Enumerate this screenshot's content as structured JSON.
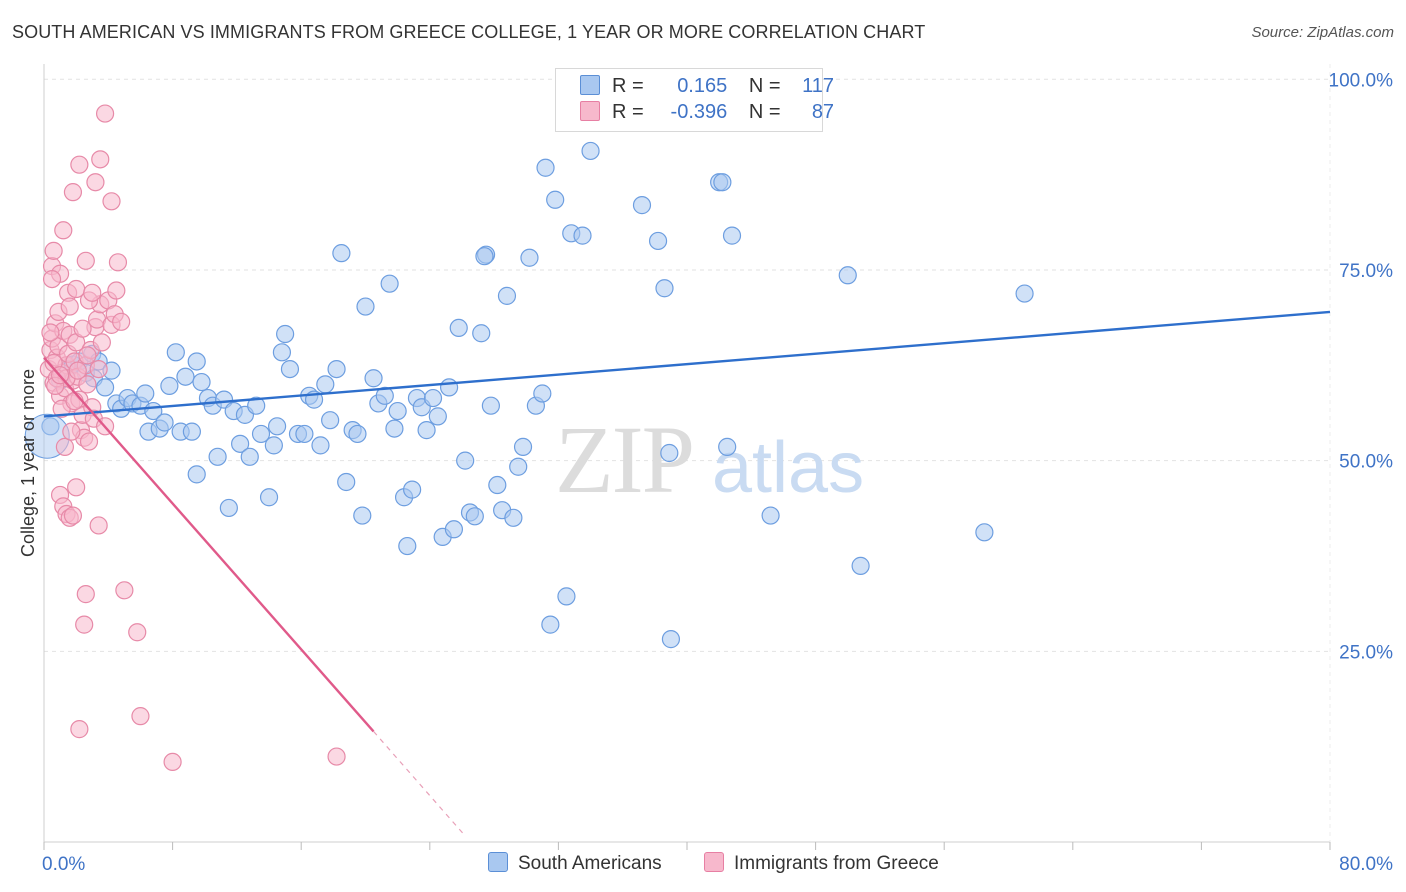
{
  "title": "SOUTH AMERICAN VS IMMIGRANTS FROM GREECE COLLEGE, 1 YEAR OR MORE CORRELATION CHART",
  "source": "Source: ZipAtlas.com",
  "watermark": {
    "zip": "ZIP",
    "atlas": "atlas"
  },
  "legend": {
    "r_label": "R =",
    "n_label": "N =",
    "rows": [
      {
        "r": "0.165",
        "n": "117",
        "color": "#a9c8f0",
        "border": "#5b8fd6"
      },
      {
        "r": "-0.396",
        "n": "87",
        "color": "#f7b8cc",
        "border": "#e77fa3"
      }
    ]
  },
  "bottom_legend": [
    "South Americans",
    "Immigrants from Greece"
  ],
  "chart_data": {
    "type": "scatter",
    "ylabel": "College, 1 year or more",
    "xlim": [
      0,
      80
    ],
    "ylim": [
      0,
      102
    ],
    "x_tick_labels": [
      {
        "v": 0,
        "label": "0.0%"
      },
      {
        "v": 80,
        "label": "80.0%"
      }
    ],
    "y_ticks": [
      {
        "v": 25,
        "label": "25.0%"
      },
      {
        "v": 50,
        "label": "50.0%"
      },
      {
        "v": 75,
        "label": "75.0%"
      },
      {
        "v": 100,
        "label": "100.0%"
      }
    ],
    "x_minor_ticks": [
      0,
      8,
      16,
      24,
      32,
      40,
      48,
      56,
      64,
      72,
      80
    ],
    "grid": true,
    "series": [
      {
        "name": "South Americans",
        "color": "#6d9ee0",
        "fill": "#a9c8f0",
        "trend": {
          "x0": 0,
          "y0": 55.8,
          "x1": 80,
          "y1": 69.5,
          "color": "#2e6fcc"
        },
        "points": [
          [
            0.4,
            54.5
          ],
          [
            1.0,
            60.5
          ],
          [
            1.5,
            62.0
          ],
          [
            1.8,
            62.6
          ],
          [
            2.2,
            63.0
          ],
          [
            2.6,
            61.5
          ],
          [
            3.0,
            64.0
          ],
          [
            3.1,
            60.8
          ],
          [
            3.4,
            63.0
          ],
          [
            3.8,
            59.6
          ],
          [
            4.2,
            61.8
          ],
          [
            4.5,
            57.5
          ],
          [
            4.8,
            56.8
          ],
          [
            5.2,
            58.2
          ],
          [
            5.5,
            57.5
          ],
          [
            6.0,
            57.2
          ],
          [
            6.3,
            58.8
          ],
          [
            6.5,
            53.8
          ],
          [
            6.8,
            56.5
          ],
          [
            7.2,
            54.2
          ],
          [
            7.5,
            55.0
          ],
          [
            7.8,
            59.8
          ],
          [
            8.2,
            64.2
          ],
          [
            8.5,
            53.8
          ],
          [
            8.8,
            61.0
          ],
          [
            9.2,
            53.8
          ],
          [
            9.5,
            63.0
          ],
          [
            9.8,
            60.3
          ],
          [
            10.2,
            58.2
          ],
          [
            10.5,
            57.2
          ],
          [
            10.8,
            50.5
          ],
          [
            11.2,
            58.0
          ],
          [
            11.5,
            43.8
          ],
          [
            11.8,
            56.5
          ],
          [
            12.2,
            52.2
          ],
          [
            12.5,
            56.0
          ],
          [
            12.8,
            50.5
          ],
          [
            13.2,
            57.2
          ],
          [
            13.5,
            53.5
          ],
          [
            14.0,
            45.2
          ],
          [
            14.3,
            52.0
          ],
          [
            14.5,
            54.5
          ],
          [
            14.8,
            64.2
          ],
          [
            15.0,
            66.6
          ],
          [
            15.3,
            62.0
          ],
          [
            15.8,
            53.5
          ],
          [
            16.2,
            53.5
          ],
          [
            16.5,
            58.5
          ],
          [
            16.8,
            58.0
          ],
          [
            17.2,
            52.0
          ],
          [
            17.5,
            60.0
          ],
          [
            17.8,
            55.3
          ],
          [
            18.2,
            62.0
          ],
          [
            18.5,
            77.2
          ],
          [
            18.8,
            47.2
          ],
          [
            19.2,
            54.0
          ],
          [
            19.5,
            53.5
          ],
          [
            19.8,
            42.8
          ],
          [
            20.0,
            70.2
          ],
          [
            20.5,
            60.8
          ],
          [
            20.8,
            57.5
          ],
          [
            21.2,
            58.5
          ],
          [
            21.5,
            73.2
          ],
          [
            21.8,
            54.2
          ],
          [
            22.0,
            56.5
          ],
          [
            22.4,
            45.2
          ],
          [
            22.6,
            38.8
          ],
          [
            22.9,
            46.2
          ],
          [
            23.2,
            58.2
          ],
          [
            23.5,
            57.0
          ],
          [
            23.8,
            54.0
          ],
          [
            24.2,
            58.2
          ],
          [
            24.5,
            55.8
          ],
          [
            24.8,
            40.0
          ],
          [
            25.2,
            59.6
          ],
          [
            25.5,
            41.0
          ],
          [
            25.8,
            67.4
          ],
          [
            26.2,
            50.0
          ],
          [
            26.5,
            43.2
          ],
          [
            26.8,
            42.7
          ],
          [
            27.2,
            66.7
          ],
          [
            27.5,
            77.0
          ],
          [
            27.8,
            57.2
          ],
          [
            28.2,
            46.8
          ],
          [
            28.5,
            43.5
          ],
          [
            28.8,
            71.6
          ],
          [
            29.2,
            42.5
          ],
          [
            29.5,
            49.2
          ],
          [
            29.8,
            51.8
          ],
          [
            30.2,
            76.6
          ],
          [
            30.6,
            57.2
          ],
          [
            31.0,
            58.8
          ],
          [
            31.2,
            88.4
          ],
          [
            31.5,
            28.5
          ],
          [
            31.8,
            84.2
          ],
          [
            32.5,
            32.2
          ],
          [
            32.8,
            79.8
          ],
          [
            33.5,
            79.5
          ],
          [
            34.0,
            90.6
          ],
          [
            37.2,
            83.5
          ],
          [
            38.2,
            78.8
          ],
          [
            38.6,
            72.6
          ],
          [
            38.9,
            51.0
          ],
          [
            39.0,
            26.6
          ],
          [
            42.0,
            86.5
          ],
          [
            42.2,
            86.5
          ],
          [
            42.8,
            79.5
          ],
          [
            42.5,
            51.8
          ],
          [
            45.2,
            42.8
          ],
          [
            50.0,
            74.3
          ],
          [
            50.8,
            36.2
          ],
          [
            58.5,
            40.6
          ],
          [
            61.0,
            71.9
          ],
          [
            38.5,
            100.0
          ],
          [
            39.2,
            99.8
          ],
          [
            9.5,
            48.2
          ],
          [
            27.4,
            76.8
          ]
        ]
      },
      {
        "name": "Immigrants from Greece",
        "color": "#e78aa8",
        "fill": "#f7b8cc",
        "trend": {
          "x0": 0,
          "y0": 63.5,
          "x1": 20.5,
          "y1": 14.5,
          "dash_x1": 26.2,
          "dash_y1": 0.8,
          "color": "#e05a8a"
        },
        "points": [
          [
            0.3,
            62.0
          ],
          [
            0.4,
            64.5
          ],
          [
            0.5,
            66.0
          ],
          [
            0.6,
            60.2
          ],
          [
            0.7,
            68.0
          ],
          [
            0.8,
            63.5
          ],
          [
            0.9,
            65.0
          ],
          [
            1.0,
            58.5
          ],
          [
            1.1,
            61.5
          ],
          [
            1.2,
            67.0
          ],
          [
            1.3,
            59.5
          ],
          [
            1.4,
            62.5
          ],
          [
            1.5,
            64.0
          ],
          [
            1.6,
            66.5
          ],
          [
            1.7,
            57.5
          ],
          [
            1.8,
            60.5
          ],
          [
            1.9,
            63.0
          ],
          [
            2.0,
            65.5
          ],
          [
            2.1,
            61.0
          ],
          [
            2.2,
            58.0
          ],
          [
            2.3,
            54.0
          ],
          [
            2.4,
            56.0
          ],
          [
            2.5,
            53.0
          ],
          [
            2.6,
            62.5
          ],
          [
            2.7,
            60.0
          ],
          [
            2.8,
            52.5
          ],
          [
            2.9,
            64.5
          ],
          [
            3.0,
            57.0
          ],
          [
            3.1,
            55.5
          ],
          [
            3.2,
            67.5
          ],
          [
            3.3,
            68.5
          ],
          [
            3.4,
            62.0
          ],
          [
            3.5,
            70.5
          ],
          [
            3.6,
            65.5
          ],
          [
            3.8,
            54.5
          ],
          [
            4.0,
            71.0
          ],
          [
            4.2,
            67.8
          ],
          [
            4.4,
            69.2
          ],
          [
            4.6,
            76.0
          ],
          [
            4.8,
            68.2
          ],
          [
            0.5,
            75.5
          ],
          [
            0.6,
            77.5
          ],
          [
            1.0,
            74.5
          ],
          [
            1.2,
            80.2
          ],
          [
            1.5,
            72.0
          ],
          [
            1.8,
            85.2
          ],
          [
            2.0,
            72.5
          ],
          [
            2.2,
            88.8
          ],
          [
            2.6,
            76.2
          ],
          [
            2.8,
            71.0
          ],
          [
            3.0,
            72.0
          ],
          [
            3.2,
            86.5
          ],
          [
            3.5,
            89.5
          ],
          [
            3.8,
            95.5
          ],
          [
            4.2,
            84.0
          ],
          [
            4.5,
            72.3
          ],
          [
            1.0,
            45.5
          ],
          [
            1.2,
            44.0
          ],
          [
            1.4,
            43.0
          ],
          [
            1.6,
            42.5
          ],
          [
            1.8,
            42.8
          ],
          [
            2.0,
            46.5
          ],
          [
            2.5,
            28.5
          ],
          [
            2.6,
            32.5
          ],
          [
            3.4,
            41.5
          ],
          [
            5.0,
            33.0
          ],
          [
            5.8,
            27.5
          ],
          [
            6.0,
            16.5
          ],
          [
            2.2,
            14.8
          ],
          [
            8.0,
            10.5
          ],
          [
            18.2,
            11.2
          ],
          [
            0.8,
            60.8
          ],
          [
            1.1,
            56.8
          ],
          [
            1.3,
            51.8
          ],
          [
            0.9,
            69.5
          ],
          [
            0.5,
            73.8
          ],
          [
            1.7,
            53.8
          ],
          [
            2.4,
            67.3
          ],
          [
            1.4,
            60.8
          ],
          [
            0.7,
            59.8
          ],
          [
            2.1,
            61.8
          ],
          [
            0.4,
            66.8
          ],
          [
            1.9,
            57.8
          ],
          [
            2.7,
            63.8
          ],
          [
            1.6,
            70.2
          ],
          [
            0.6,
            62.8
          ],
          [
            1.0,
            61.2
          ]
        ]
      }
    ]
  }
}
